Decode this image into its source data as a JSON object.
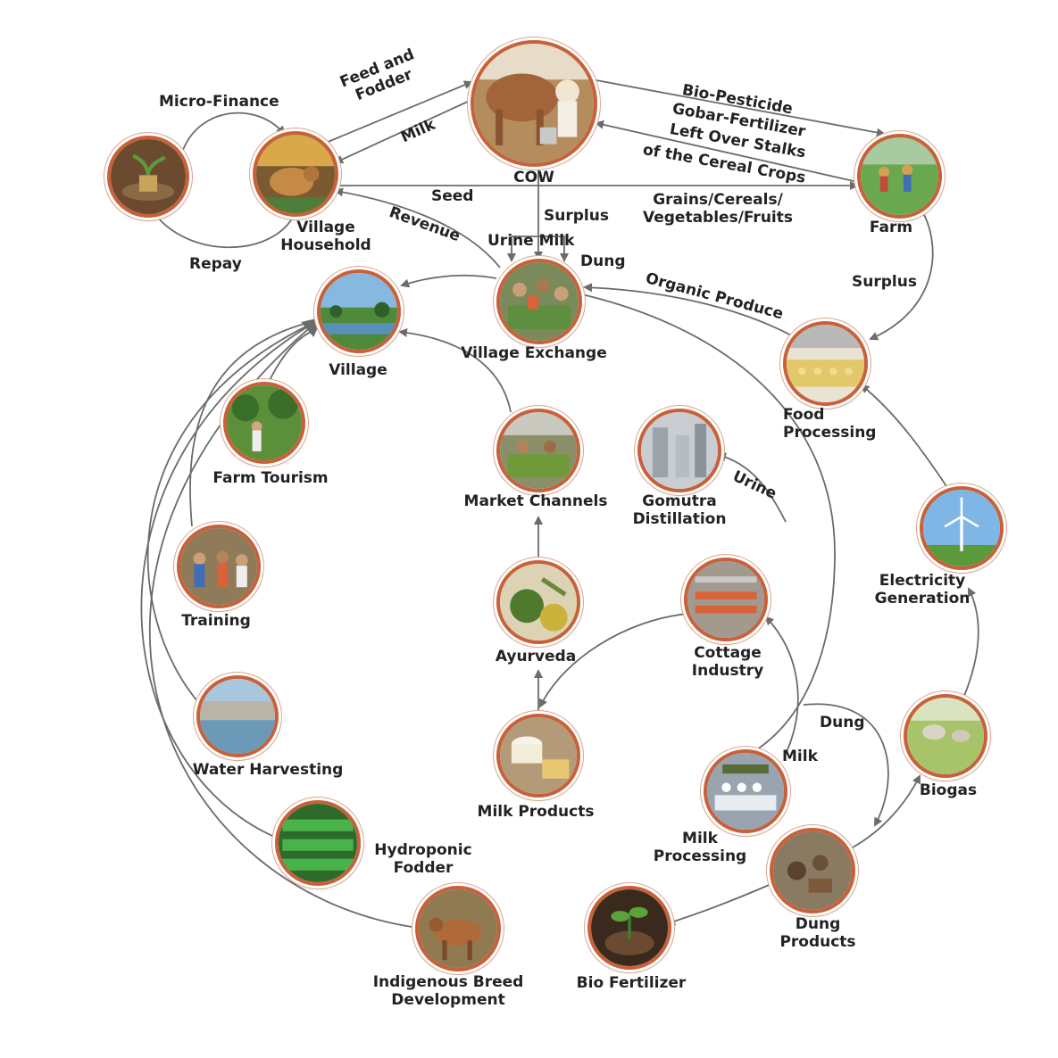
{
  "nodes": {
    "cow": "COW",
    "village_household": "Village\nHousehold",
    "micro_finance_pot": "",
    "farm": "Farm",
    "village_exchange": "Village Exchange",
    "village": "Village",
    "food_processing": "Food\nProcessing",
    "farm_tourism": "Farm Tourism",
    "market_channels": "Market Channels",
    "gomutra_distillation": "Gomutra\nDistillation",
    "training": "Training",
    "ayurveda": "Ayurveda",
    "cottage_industry": "Cottage\nIndustry",
    "electricity_generation": "Electricity\nGeneration",
    "water_harvesting": "Water Harvesting",
    "milk_products": "Milk Products",
    "milk_processing": "Milk\nProcessing",
    "biogas": "Biogas",
    "hydroponic_fodder": "Hydroponic\nFodder",
    "dung_products": "Dung\nProducts",
    "indigenous_breed": "Indigenous Breed\nDevelopment",
    "bio_fertilizer": "Bio Fertilizer"
  },
  "edges": {
    "micro_finance": "Micro-Finance",
    "repay": "Repay",
    "feed_fodder": "Feed and\nFodder",
    "milk_top": "Milk",
    "bio_pesticide": "Bio-Pesticide",
    "gobar_fertilizer": "Gobar-Fertilizer",
    "left_over_stalks": "Left Over Stalks",
    "cereal_crops": "of the Cereal Crops",
    "seed": "Seed",
    "grains": "Grains/Cereals/\nVegetables/Fruits",
    "revenue": "Revenue",
    "surplus_cow": "Surplus",
    "urine_milk": "Urine Milk",
    "dung_top": "Dung",
    "organic_produce": "Organic Produce",
    "surplus_farm": "Surplus",
    "urine": "Urine",
    "dung_lower": "Dung",
    "milk_lower": "Milk"
  },
  "colors": {
    "ring": "#c8613a",
    "arrow": "#6b6b6b",
    "text": "#222222"
  }
}
